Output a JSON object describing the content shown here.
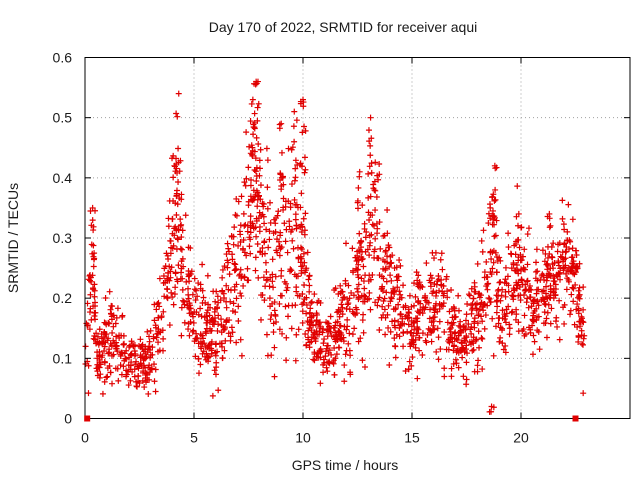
{
  "chart_data": {
    "type": "scatter",
    "title": "Day 170 of 2022, SRMTID for receiver aqui",
    "xlabel": "GPS time / hours",
    "ylabel": "SRMTID / TECUs",
    "xlim": [
      0,
      25
    ],
    "ylim": [
      0,
      0.6
    ],
    "xticks": [
      0,
      5,
      10,
      15,
      20
    ],
    "yticks": [
      0,
      0.1,
      0.2,
      0.3,
      0.4,
      0.5,
      0.6
    ],
    "xtick_labels": [
      "0",
      "5",
      "10",
      "15",
      "20"
    ],
    "ytick_labels": [
      "0",
      "0.1",
      "0.2",
      "0.3",
      "0.4",
      "0.5",
      "0.6"
    ],
    "grid": true,
    "marker": "plus",
    "color": "#e00000",
    "series": [
      {
        "name": "SRMTID",
        "envelope": {
          "x": [
            0.0,
            0.2,
            0.35,
            0.5,
            0.8,
            1.2,
            1.6,
            2.0,
            2.5,
            3.0,
            3.5,
            4.0,
            4.2,
            4.4,
            4.8,
            5.2,
            5.8,
            6.2,
            6.8,
            7.2,
            7.6,
            7.9,
            8.3,
            8.7,
            9.1,
            9.5,
            9.9,
            10.1,
            10.4,
            10.8,
            11.2,
            11.6,
            12.0,
            12.4,
            12.8,
            13.2,
            13.4,
            13.7,
            14.1,
            14.5,
            14.9,
            15.3,
            15.8,
            16.3,
            16.8,
            17.3,
            17.8,
            18.2,
            18.5,
            18.8,
            19.0,
            19.4,
            19.8,
            20.2,
            20.6,
            21.0,
            21.4,
            21.8,
            22.2,
            22.6,
            22.9
          ],
          "center": [
            0.12,
            0.18,
            0.3,
            0.1,
            0.1,
            0.15,
            0.12,
            0.1,
            0.09,
            0.1,
            0.17,
            0.3,
            0.33,
            0.28,
            0.19,
            0.15,
            0.13,
            0.15,
            0.24,
            0.26,
            0.34,
            0.36,
            0.26,
            0.24,
            0.3,
            0.24,
            0.3,
            0.22,
            0.15,
            0.13,
            0.13,
            0.15,
            0.17,
            0.19,
            0.24,
            0.3,
            0.32,
            0.22,
            0.2,
            0.17,
            0.14,
            0.17,
            0.19,
            0.2,
            0.15,
            0.13,
            0.15,
            0.17,
            0.24,
            0.28,
            0.2,
            0.17,
            0.24,
            0.22,
            0.19,
            0.2,
            0.22,
            0.24,
            0.26,
            0.19,
            0.15
          ],
          "spread": [
            0.04,
            0.08,
            0.08,
            0.03,
            0.04,
            0.05,
            0.04,
            0.03,
            0.03,
            0.04,
            0.06,
            0.09,
            0.1,
            0.07,
            0.05,
            0.05,
            0.05,
            0.06,
            0.09,
            0.1,
            0.11,
            0.12,
            0.09,
            0.1,
            0.11,
            0.09,
            0.11,
            0.08,
            0.05,
            0.04,
            0.04,
            0.05,
            0.06,
            0.07,
            0.09,
            0.1,
            0.09,
            0.07,
            0.06,
            0.05,
            0.05,
            0.05,
            0.06,
            0.06,
            0.05,
            0.04,
            0.05,
            0.06,
            0.08,
            0.09,
            0.06,
            0.06,
            0.07,
            0.06,
            0.05,
            0.05,
            0.06,
            0.06,
            0.05,
            0.05,
            0.04
          ]
        },
        "peaks": [
          {
            "x": 0.35,
            "y": 0.35
          },
          {
            "x": 4.3,
            "y": 0.54
          },
          {
            "x": 4.1,
            "y": 0.42
          },
          {
            "x": 7.85,
            "y": 0.56
          },
          {
            "x": 7.7,
            "y": 0.53
          },
          {
            "x": 9.0,
            "y": 0.49
          },
          {
            "x": 9.6,
            "y": 0.51
          },
          {
            "x": 10.0,
            "y": 0.53
          },
          {
            "x": 13.1,
            "y": 0.5
          },
          {
            "x": 12.6,
            "y": 0.41
          },
          {
            "x": 18.8,
            "y": 0.42
          },
          {
            "x": 19.9,
            "y": 0.34
          },
          {
            "x": 21.3,
            "y": 0.34
          },
          {
            "x": 18.65,
            "y": 0.02
          }
        ]
      }
    ],
    "annotations": [
      {
        "type": "square-marker",
        "x": 0.1,
        "y": 0
      },
      {
        "type": "square-marker",
        "x": 22.5,
        "y": 0
      }
    ]
  }
}
